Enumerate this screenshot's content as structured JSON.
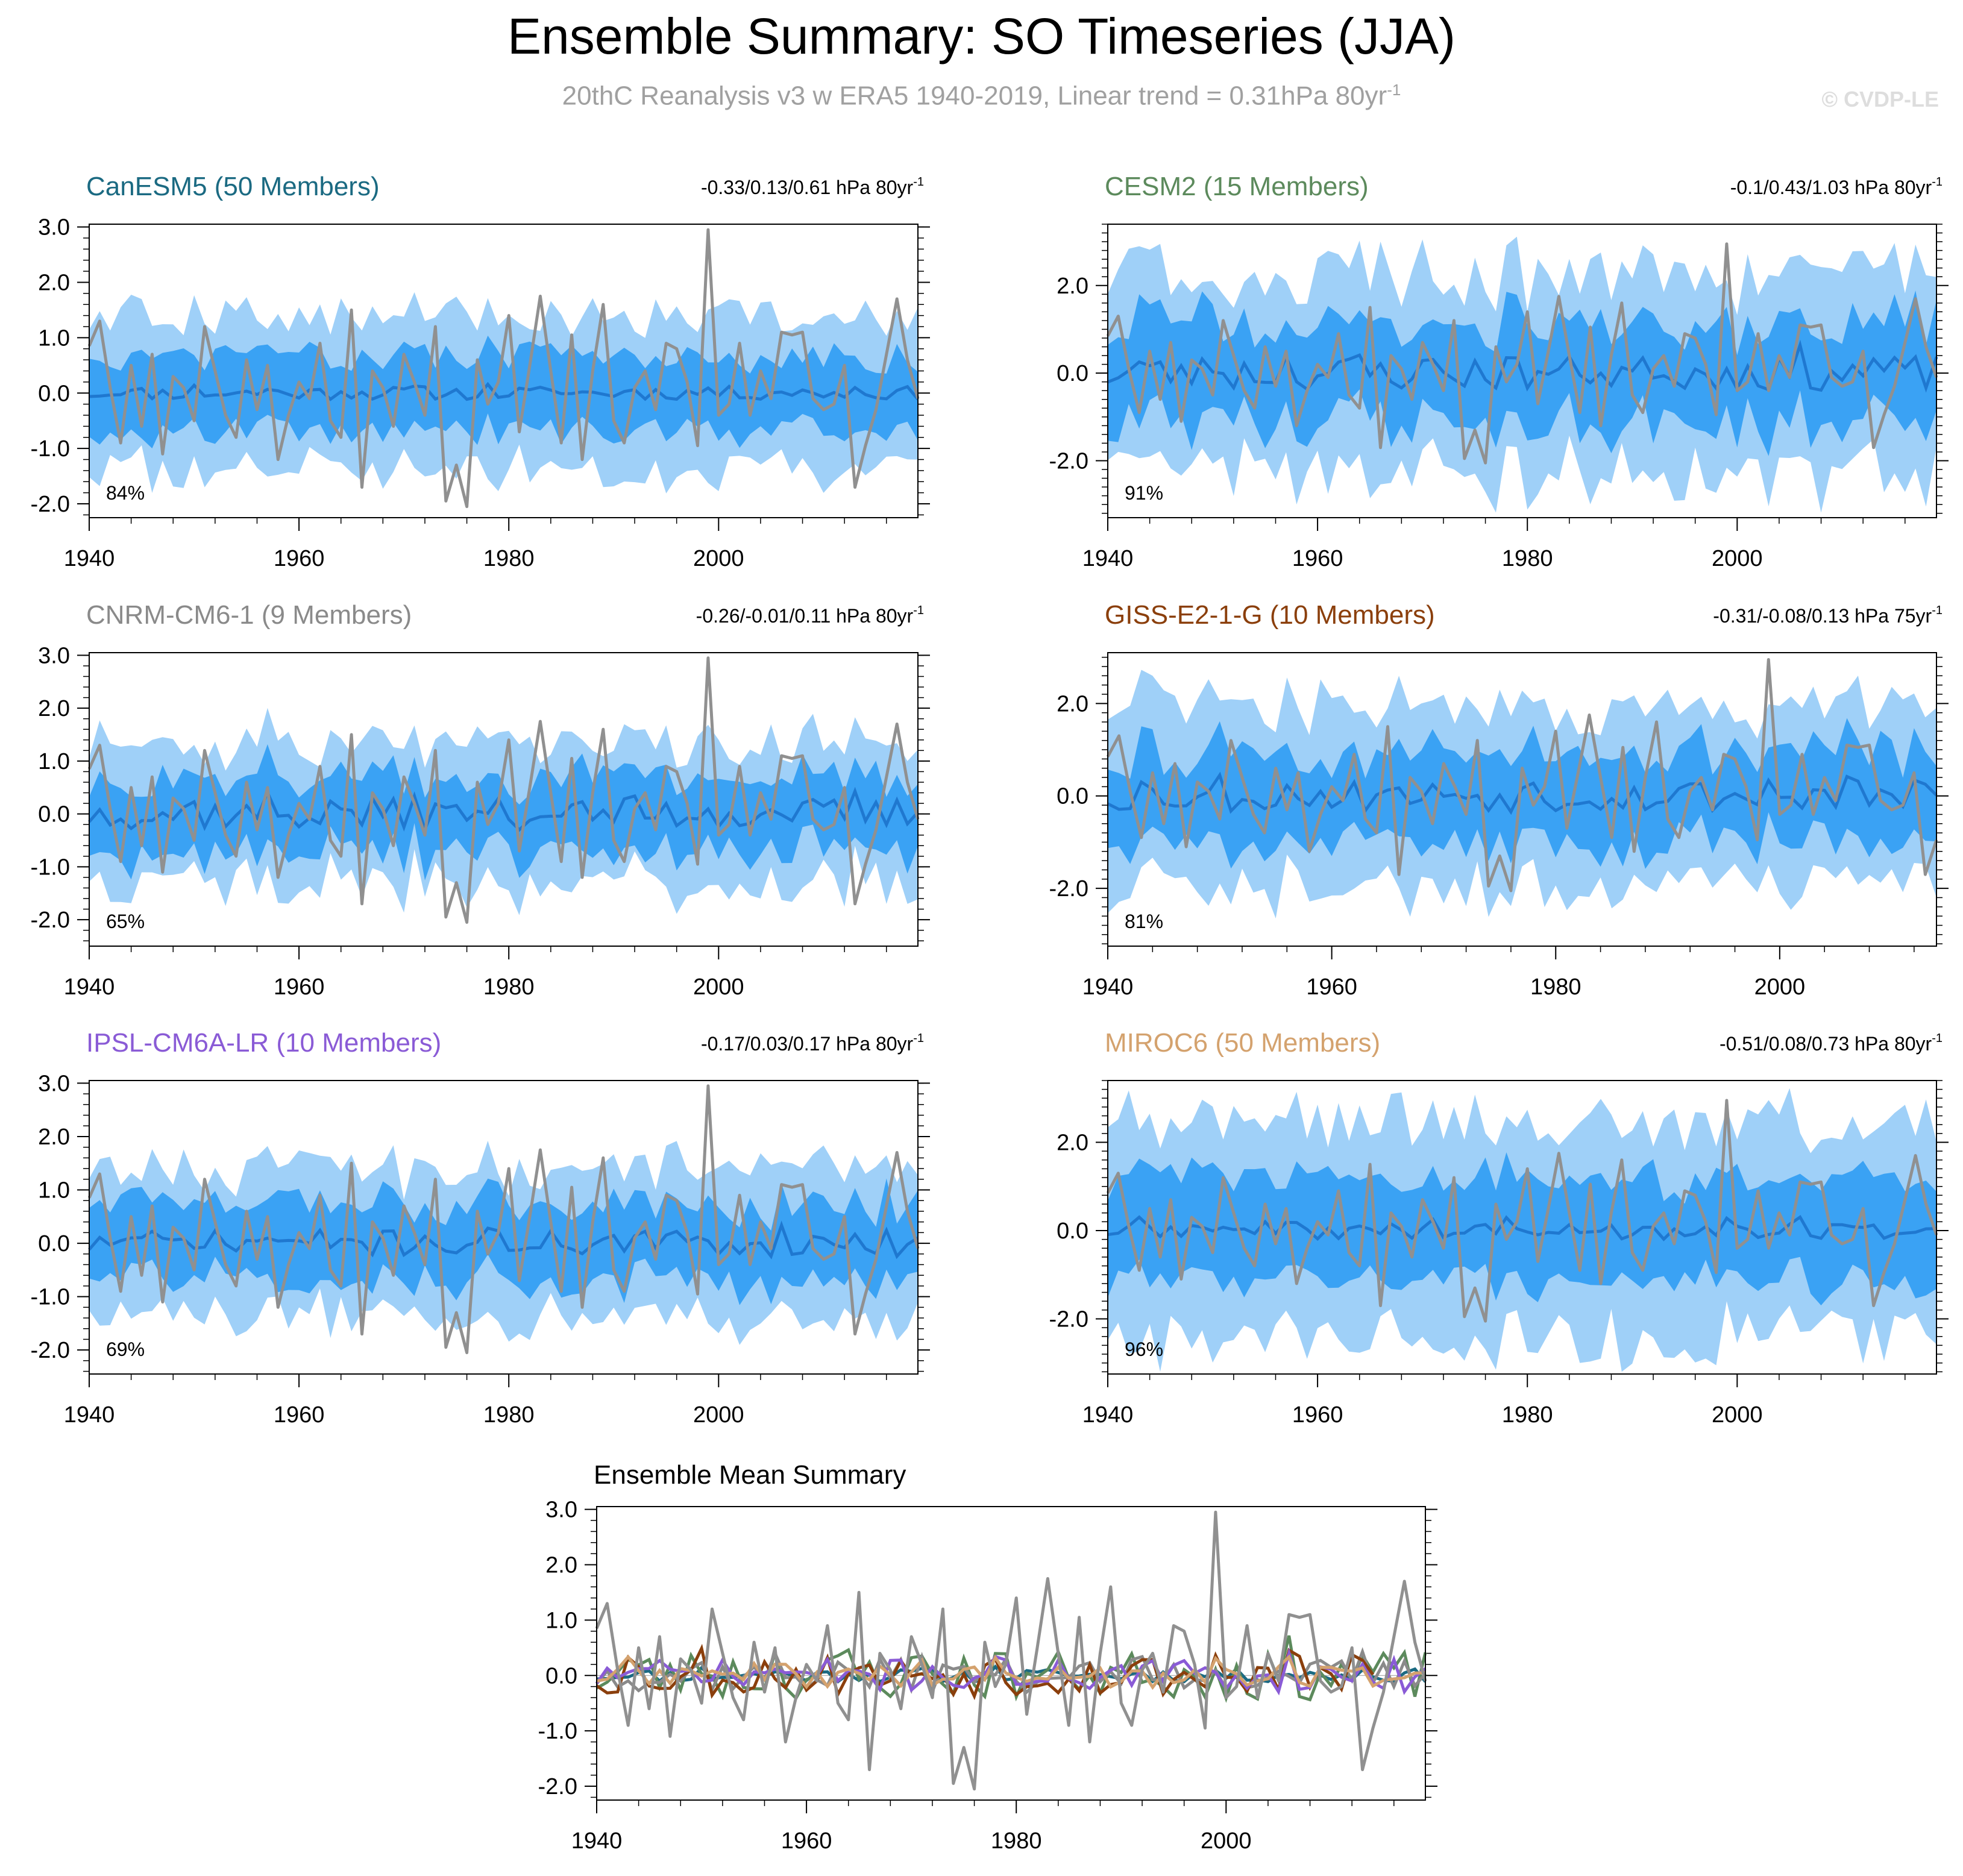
{
  "title": "Ensemble Summary: SO Timeseries (JJA)",
  "subtitle": "20thC Reanalysis v3 w ERA5 1940-2019, Linear trend = 0.31hPa 80yr",
  "subtitle_sup": "-1",
  "copyright": "© CVDP-LE",
  "colors": {
    "band_outer": "#9fd0f8",
    "band_inner": "#3aa2f4",
    "ens_mean": "#1f78d0",
    "obs": "#909090"
  },
  "obs_series": [
    0.85,
    1.3,
    0.1,
    -0.9,
    0.5,
    -0.6,
    0.7,
    -1.1,
    0.3,
    0.1,
    -0.5,
    1.2,
    0.4,
    -0.4,
    -0.8,
    0.6,
    -0.3,
    0.5,
    -1.2,
    -0.4,
    0.2,
    -0.1,
    0.9,
    -0.5,
    -0.8,
    1.5,
    -1.7,
    0.4,
    0.1,
    -0.6,
    0.7,
    0.2,
    -0.4,
    1.2,
    -1.95,
    -1.3,
    -2.05,
    0.6,
    -0.2,
    0.2,
    1.4,
    -0.7,
    0.5,
    1.75,
    0.4,
    -0.9,
    1.05,
    -1.2,
    0.4,
    1.6,
    -0.5,
    -0.9,
    0.1,
    0.4,
    -0.3,
    0.9,
    0.8,
    0.2,
    -0.95,
    2.95,
    -0.4,
    -0.2,
    0.9,
    -0.4,
    0.4,
    -0.1,
    1.1,
    1.05,
    1.1,
    -0.1,
    -0.3,
    -0.2,
    0.5,
    -1.7,
    -0.95,
    -0.3,
    0.7,
    1.7,
    0.6,
    -0.1
  ],
  "panels": [
    {
      "name": "CanESM5",
      "title": "CanESM5 (50 Members)",
      "title_color": "#1b6a82",
      "trend": "-0.33/0.13/0.61 hPa 80yr",
      "trend_sup": "-1",
      "pct": "84%",
      "chart_data": {
        "type": "area",
        "start_year": 1940,
        "end_year": 2019,
        "ylim": [
          -2.25,
          3.05
        ],
        "yticks": [
          "3.0",
          "2.0",
          "1.0",
          "0.0",
          "-1.0",
          "-2.0"
        ],
        "ytick_values": [
          3,
          2,
          1,
          0,
          -1,
          -2
        ],
        "xticks": [
          "1940",
          "1960",
          "1980",
          "2000"
        ],
        "xtick_values": [
          1940,
          1960,
          1980,
          2000
        ],
        "mean_amp": 0.12,
        "inner": 0.7,
        "outer": 1.35,
        "seed": 11
      }
    },
    {
      "name": "CESM2",
      "title": "CESM2 (15 Members)",
      "title_color": "#5c8a5c",
      "trend": "-0.1/0.43/1.03 hPa 80yr",
      "trend_sup": "-1",
      "pct": "91%",
      "chart_data": {
        "type": "area",
        "start_year": 1940,
        "end_year": 2019,
        "ylim": [
          -3.3,
          3.4
        ],
        "yticks": [
          "2.0",
          "0.0",
          "-2.0"
        ],
        "ytick_values": [
          2,
          0,
          -2
        ],
        "xticks": [
          "1940",
          "1960",
          "1980",
          "2000"
        ],
        "xtick_values": [
          1940,
          1960,
          1980,
          2000
        ],
        "mean_amp": 0.4,
        "inner": 1.2,
        "outer": 2.2,
        "seed": 23
      }
    },
    {
      "name": "CNRM-CM6-1",
      "title": "CNRM-CM6-1 (9 Members)",
      "title_color": "#8a8a8a",
      "trend": "-0.26/-0.01/0.11 hPa 80yr",
      "trend_sup": "-1",
      "pct": "65%",
      "chart_data": {
        "type": "area",
        "start_year": 1940,
        "end_year": 2019,
        "ylim": [
          -2.5,
          3.05
        ],
        "yticks": [
          "3.0",
          "2.0",
          "1.0",
          "0.0",
          "-1.0",
          "-2.0"
        ],
        "ytick_values": [
          3,
          2,
          1,
          0,
          -1,
          -2
        ],
        "xticks": [
          "1940",
          "1960",
          "1980",
          "2000"
        ],
        "xtick_values": [
          1940,
          1960,
          1980,
          2000
        ],
        "mean_amp": 0.3,
        "inner": 0.75,
        "outer": 1.3,
        "seed": 37
      }
    },
    {
      "name": "GISS-E2-1-G",
      "title": "GISS-E2-1-G (10 Members)",
      "title_color": "#8b3f0c",
      "trend": "-0.31/-0.08/0.13 hPa 75yr",
      "trend_sup": "-1",
      "pct": "81%",
      "chart_data": {
        "type": "area",
        "start_year": 1940,
        "end_year": 2014,
        "ylim": [
          -3.25,
          3.1
        ],
        "yticks": [
          "2.0",
          "0.0",
          "-2.0"
        ],
        "ytick_values": [
          2,
          0,
          -2
        ],
        "xticks": [
          "1940",
          "1960",
          "1980",
          "2000"
        ],
        "xtick_values": [
          1940,
          1960,
          1980,
          2000
        ],
        "mean_amp": 0.35,
        "inner": 1.0,
        "outer": 1.9,
        "seed": 53
      }
    },
    {
      "name": "IPSL-CM6A-LR",
      "title": "IPSL-CM6A-LR (10 Members)",
      "title_color": "#8a5bd6",
      "trend": "-0.17/0.03/0.17 hPa 80yr",
      "trend_sup": "-1",
      "pct": "69%",
      "chart_data": {
        "type": "area",
        "start_year": 1940,
        "end_year": 2019,
        "ylim": [
          -2.45,
          3.05
        ],
        "yticks": [
          "3.0",
          "2.0",
          "1.0",
          "0.0",
          "-1.0",
          "-2.0"
        ],
        "ytick_values": [
          3,
          2,
          1,
          0,
          -1,
          -2
        ],
        "xticks": [
          "1940",
          "1960",
          "1980",
          "2000"
        ],
        "xtick_values": [
          1940,
          1960,
          1980,
          2000
        ],
        "mean_amp": 0.25,
        "inner": 0.75,
        "outer": 1.35,
        "seed": 71
      }
    },
    {
      "name": "MIROC6",
      "title": "MIROC6 (50 Members)",
      "title_color": "#d4a26e",
      "trend": "-0.51/0.08/0.73 hPa 80yr",
      "trend_sup": "-1",
      "pct": "96%",
      "chart_data": {
        "type": "area",
        "start_year": 1940,
        "end_year": 2019,
        "ylim": [
          -3.25,
          3.4
        ],
        "yticks": [
          "2.0",
          "0.0",
          "-2.0"
        ],
        "ytick_values": [
          2,
          0,
          -2
        ],
        "xticks": [
          "1940",
          "1960",
          "1980",
          "2000"
        ],
        "xtick_values": [
          1940,
          1960,
          1980,
          2000
        ],
        "mean_amp": 0.2,
        "inner": 1.2,
        "outer": 2.4,
        "seed": 89
      }
    }
  ],
  "summary": {
    "title": "Ensemble Mean Summary",
    "chart_data": {
      "type": "line",
      "start_year": 1940,
      "end_year": 2019,
      "ylim": [
        -2.25,
        3.05
      ],
      "yticks": [
        "3.0",
        "2.0",
        "1.0",
        "0.0",
        "-1.0",
        "-2.0"
      ],
      "ytick_values": [
        3,
        2,
        1,
        0,
        -1,
        -2
      ],
      "xticks": [
        "1940",
        "1960",
        "1980",
        "2000"
      ],
      "xtick_values": [
        1940,
        1960,
        1980,
        2000
      ],
      "series": [
        {
          "name": "CanESM5",
          "color": "#1b6a82",
          "amp": 0.12,
          "seed": 11
        },
        {
          "name": "CESM2",
          "color": "#5c8a5c",
          "amp": 0.45,
          "seed": 23
        },
        {
          "name": "CNRM-CM6-1",
          "color": "#8a8a8a",
          "amp": 0.3,
          "seed": 37
        },
        {
          "name": "GISS-E2-1-G",
          "color": "#8b3f0c",
          "amp": 0.38,
          "seed": 53,
          "end_year": 2014
        },
        {
          "name": "IPSL-CM6A-LR",
          "color": "#8a5bd6",
          "amp": 0.3,
          "seed": 71
        },
        {
          "name": "MIROC6",
          "color": "#d4a26e",
          "amp": 0.22,
          "seed": 89
        }
      ]
    }
  }
}
